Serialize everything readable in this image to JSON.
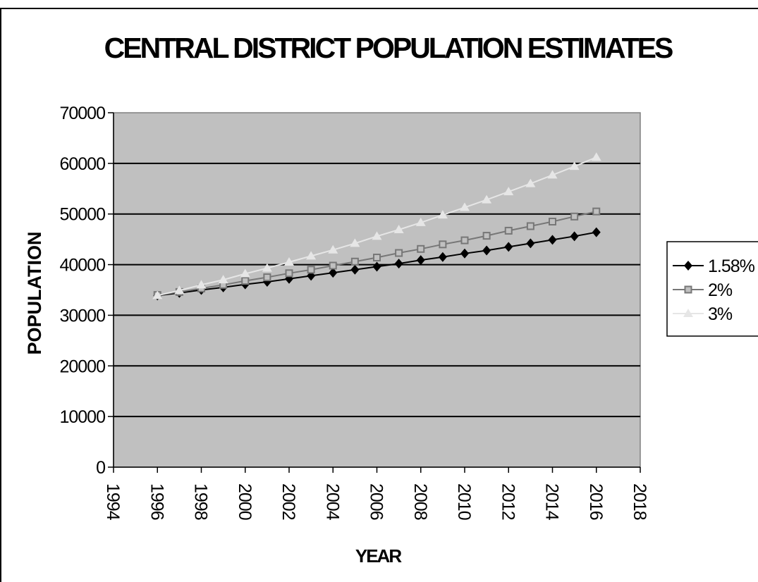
{
  "chart_data": {
    "type": "line",
    "title": "CENTRAL DISTRICT POPULATION ESTIMATES",
    "xlabel": "YEAR",
    "ylabel": "POPULATION",
    "xlim": [
      1994,
      2018
    ],
    "ylim": [
      0,
      70000
    ],
    "x_ticks": [
      "1994",
      "1996",
      "1998",
      "2000",
      "2002",
      "2004",
      "2006",
      "2008",
      "2010",
      "2012",
      "2014",
      "2016",
      "2018"
    ],
    "y_ticks": [
      "0",
      "10000",
      "20000",
      "30000",
      "40000",
      "50000",
      "60000",
      "70000"
    ],
    "grid": true,
    "legend_position": "right",
    "x": [
      1996,
      1997,
      1998,
      1999,
      2000,
      2001,
      2002,
      2003,
      2004,
      2005,
      2006,
      2007,
      2008,
      2009,
      2010,
      2011,
      2012,
      2013,
      2014,
      2015,
      2016
    ],
    "series": [
      {
        "name": "1.58%",
        "color": "#000000",
        "marker": "diamond",
        "values": [
          33900,
          34400,
          35000,
          35500,
          36100,
          36600,
          37200,
          37800,
          38400,
          39000,
          39600,
          40200,
          40900,
          41500,
          42200,
          42800,
          43500,
          44200,
          44900,
          45600,
          46400
        ]
      },
      {
        "name": "2%",
        "color": "#777777",
        "marker": "square",
        "values": [
          34000,
          34600,
          35300,
          36000,
          36800,
          37500,
          38300,
          39000,
          39800,
          40600,
          41400,
          42300,
          43100,
          44000,
          44800,
          45700,
          46700,
          47600,
          48500,
          49500,
          50500
        ]
      },
      {
        "name": "3%",
        "color": "#e6e6e6",
        "marker": "triangle",
        "values": [
          33900,
          34900,
          36000,
          37000,
          38200,
          39300,
          40500,
          41700,
          42900,
          44200,
          45600,
          46900,
          48300,
          49800,
          51300,
          52800,
          54400,
          56000,
          57700,
          59400,
          61200
        ]
      }
    ]
  }
}
